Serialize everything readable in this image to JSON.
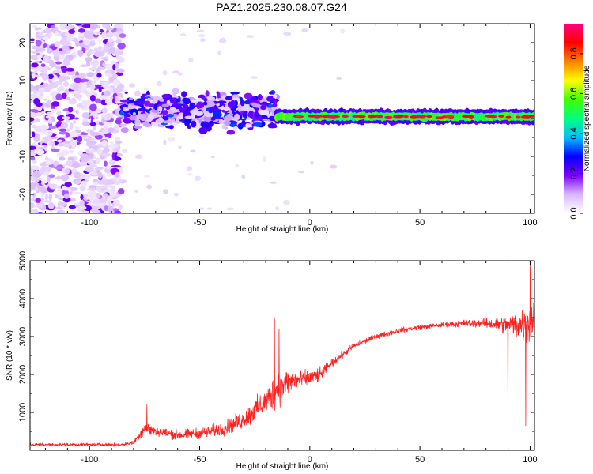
{
  "figure": {
    "title": "PAZ1.2025.230.08.07.G24"
  },
  "chart_data": [
    {
      "type": "heatmap",
      "xlabel": "Height of straight line (km)",
      "ylabel": "Frequency (Hz)",
      "xlim": [
        -127,
        102
      ],
      "ylim": [
        -25,
        25
      ],
      "x_ticks": [
        -100,
        -50,
        0,
        50,
        100
      ],
      "y_ticks": [
        -20,
        -10,
        0,
        10,
        20
      ],
      "colorbar": {
        "label": "Normalized spectral amplitude",
        "range": [
          0,
          0.95
        ],
        "ticks": [
          "0.0",
          "0.2",
          "0.4",
          "0.6",
          "0.8"
        ],
        "colormap": [
          "#ffffff",
          "#d9b8ff",
          "#7d00ff",
          "#0000ff",
          "#00c0ff",
          "#00ff80",
          "#40ff00",
          "#ffff00",
          "#ff8000",
          "#ff0000",
          "#ff0080"
        ]
      },
      "features": [
        {
          "x_range": [
            -127,
            -85
          ],
          "freq_range": [
            -25,
            25
          ],
          "amplitude": 0.05,
          "description": "scattered noise"
        },
        {
          "x_range": [
            -85,
            -15
          ],
          "freq_range": [
            -7,
            10
          ],
          "amplitude": 0.25
        },
        {
          "x_range": [
            -15,
            102
          ],
          "freq_center": 0.5,
          "freq_halfwidth": 2,
          "amplitude": 0.9
        }
      ]
    },
    {
      "type": "line",
      "xlabel": "Height of straight line (km)",
      "ylabel": "SNR (10 * v/v)",
      "xlim": [
        -127,
        102
      ],
      "ylim": [
        0,
        5000
      ],
      "x_ticks": [
        -100,
        -50,
        0,
        50,
        100
      ],
      "y_ticks": [
        1000,
        2000,
        3000,
        4000,
        5000
      ],
      "line_color": "#ff2020",
      "envelope": {
        "x": [
          -127,
          -85,
          -80,
          -75,
          -70,
          -60,
          -50,
          -40,
          -30,
          -20,
          -15,
          -10,
          -5,
          0,
          5,
          10,
          20,
          30,
          40,
          50,
          60,
          70,
          80,
          90,
          95,
          100,
          102
        ],
        "mean": [
          150,
          150,
          200,
          600,
          500,
          400,
          450,
          550,
          800,
          1300,
          1600,
          1800,
          1850,
          1900,
          2000,
          2300,
          2750,
          3000,
          3150,
          3250,
          3300,
          3350,
          3350,
          3300,
          3300,
          3400,
          3500
        ],
        "amp": [
          60,
          60,
          80,
          250,
          200,
          200,
          200,
          250,
          350,
          500,
          700,
          500,
          350,
          300,
          250,
          150,
          120,
          100,
          100,
          100,
          100,
          130,
          180,
          350,
          600,
          900,
          700
        ]
      },
      "spikes": [
        {
          "x": -74,
          "y": 1200
        },
        {
          "x": -16,
          "y": 3500
        },
        {
          "x": -14,
          "y": 3200
        },
        {
          "x": 90,
          "y": 700
        },
        {
          "x": 98,
          "y": 650
        },
        {
          "x": 100,
          "y": 5000
        }
      ]
    }
  ]
}
